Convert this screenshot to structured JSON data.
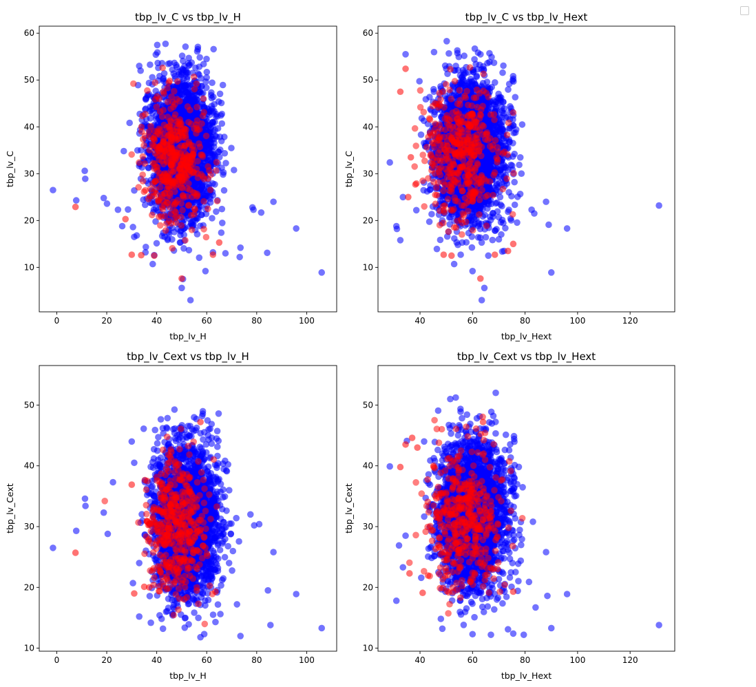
{
  "figure": {
    "legend": {
      "entries": [],
      "placement": "top-right"
    }
  },
  "chart_data": [
    {
      "type": "scatter",
      "title": "tbp_lv_C vs tbp_lv_H",
      "xlabel": "tbp_lv_H",
      "ylabel": "tbp_lv_C",
      "xlim": [
        -7,
        112
      ],
      "ylim": [
        0.5,
        61.5
      ],
      "xticks": [
        0,
        20,
        40,
        60,
        80,
        100
      ],
      "yticks": [
        10,
        20,
        30,
        40,
        50,
        60
      ],
      "grid": false,
      "cluster": {
        "color": "#0000ff",
        "center": [
          50,
          35
        ],
        "spread": [
          11.5,
          13.5
        ],
        "clip_x": [
          25,
          73
        ],
        "clip_y": [
          12,
          58.5
        ]
      },
      "highlight_cluster": {
        "color": "#ff0000",
        "center": [
          47,
          33
        ],
        "spread": [
          6,
          6.5
        ]
      },
      "series": [
        {
          "color": "#0000ff",
          "x": [
            -1.5,
            7.8,
            11.2,
            11.4,
            18.8,
            20.1,
            24.5,
            26.2,
            30.5,
            31,
            32,
            33,
            35.5,
            38.4,
            39,
            50,
            50.5,
            53.5,
            59.5,
            62.5,
            67.5,
            73.2,
            73.5,
            78.3,
            78.7,
            81.8,
            84.2,
            86.7,
            95.8,
            106
          ],
          "y": [
            26.5,
            24.3,
            30.6,
            28.9,
            24.8,
            23.6,
            22.3,
            18.8,
            18.6,
            16.5,
            16.8,
            53,
            13.2,
            10.7,
            12.6,
            5.6,
            7.5,
            3,
            9.2,
            13.2,
            13,
            12.2,
            14.2,
            22.8,
            22.3,
            21.7,
            13.1,
            24,
            18.3,
            8.9
          ]
        },
        {
          "color": "#ff0000",
          "x": [
            7.5,
            27.5,
            30,
            33.8,
            50,
            65,
            62.5,
            39
          ],
          "y": [
            22.9,
            20.3,
            12.7,
            12.6,
            7.6,
            15.3,
            12.7,
            12.5
          ]
        }
      ]
    },
    {
      "type": "scatter",
      "title": "tbp_lv_C vs tbp_lv_Hext",
      "xlabel": "tbp_lv_Hext",
      "ylabel": "tbp_lv_C",
      "xlim": [
        24,
        137
      ],
      "ylim": [
        0.5,
        61.5
      ],
      "xticks": [
        40,
        60,
        80,
        100,
        120
      ],
      "yticks": [
        10,
        20,
        30,
        40,
        50,
        60
      ],
      "grid": false,
      "cluster": {
        "color": "#0000ff",
        "center": [
          59,
          35
        ],
        "spread": [
          12,
          13.5
        ],
        "clip_x": [
          34,
          82
        ],
        "clip_y": [
          12,
          58.5
        ]
      },
      "highlight_cluster": {
        "color": "#ff0000",
        "center": [
          56,
          34
        ],
        "spread": [
          7,
          7
        ]
      },
      "series": [
        {
          "color": "#0000ff",
          "x": [
            28.5,
            31,
            31.2,
            32.5,
            33.5,
            34.5,
            53,
            64.5,
            63.5,
            66,
            60,
            72,
            82.5,
            83.5,
            88,
            89,
            90,
            96,
            131
          ],
          "y": [
            32.4,
            18.8,
            18.2,
            15.8,
            25,
            55.5,
            10.7,
            5.6,
            3,
            12.5,
            9.2,
            13.5,
            22.3,
            21.5,
            24,
            19.1,
            8.9,
            18.3,
            23.2
          ]
        },
        {
          "color": "#ff0000",
          "x": [
            32.5,
            34.5,
            35.5,
            36.5,
            49,
            52,
            63,
            68.5,
            73.5,
            75.5
          ],
          "y": [
            47.5,
            52.4,
            25,
            33.5,
            12.7,
            12.5,
            7.6,
            12.7,
            13.5,
            15
          ]
        }
      ]
    },
    {
      "type": "scatter",
      "title": "tbp_lv_Cext vs tbp_lv_H",
      "xlabel": "tbp_lv_H",
      "ylabel": "tbp_lv_Cext",
      "xlim": [
        -7,
        112
      ],
      "ylim": [
        9.5,
        56.5
      ],
      "xticks": [
        0,
        20,
        40,
        60,
        80,
        100
      ],
      "yticks": [
        10,
        20,
        30,
        40,
        50
      ],
      "grid": false,
      "cluster": {
        "color": "#0000ff",
        "center": [
          52,
          31
        ],
        "spread": [
          11.5,
          11
        ],
        "clip_x": [
          26,
          74
        ],
        "clip_y": [
          12,
          54
        ]
      },
      "highlight_cluster": {
        "color": "#ff0000",
        "center": [
          48,
          30
        ],
        "spread": [
          6,
          5.5
        ]
      },
      "series": [
        {
          "color": "#0000ff",
          "x": [
            -1.5,
            7.8,
            11.3,
            11.5,
            18.8,
            20.4,
            22.5,
            30,
            31,
            33,
            42.5,
            57.5,
            63.5,
            73.5,
            77.5,
            79,
            81,
            84.5,
            85.5,
            86.7,
            95.8,
            106
          ],
          "y": [
            26.5,
            29.3,
            34.6,
            33.4,
            32.3,
            28.8,
            37.3,
            44,
            40.5,
            15.2,
            13.2,
            11.8,
            14.3,
            12,
            32,
            30.2,
            30.4,
            19.5,
            13.8,
            25.8,
            18.9,
            13.3
          ]
        },
        {
          "color": "#ff0000",
          "x": [
            7.5,
            30,
            31,
            35,
            37,
            57.5,
            63.5
          ],
          "y": [
            25.7,
            36.9,
            19,
            20.1,
            20,
            47.2,
            19.3
          ]
        }
      ]
    },
    {
      "type": "scatter",
      "title": "tbp_lv_Cext vs tbp_lv_Hext",
      "xlabel": "tbp_lv_Hext",
      "ylabel": "tbp_lv_Cext",
      "xlim": [
        24,
        137
      ],
      "ylim": [
        9.5,
        56.5
      ],
      "xticks": [
        40,
        60,
        80,
        100,
        120
      ],
      "yticks": [
        10,
        20,
        30,
        40,
        50
      ],
      "grid": false,
      "cluster": {
        "color": "#0000ff",
        "center": [
          60,
          32
        ],
        "spread": [
          11.5,
          11
        ],
        "clip_x": [
          34,
          82
        ],
        "clip_y": [
          12,
          54
        ]
      },
      "highlight_cluster": {
        "color": "#ff0000",
        "center": [
          57,
          31
        ],
        "spread": [
          7,
          6
        ]
      },
      "series": [
        {
          "color": "#0000ff",
          "x": [
            28.5,
            31,
            32,
            33.5,
            34.5,
            35,
            48.5,
            60,
            67,
            73.5,
            75.5,
            79.5,
            81.5,
            83,
            84,
            88,
            88.5,
            90,
            96,
            131
          ],
          "y": [
            39.9,
            17.8,
            26.9,
            23.3,
            28.5,
            44.1,
            13.2,
            12.3,
            12.2,
            13.1,
            12.4,
            12.2,
            20.9,
            30.8,
            16.7,
            25.8,
            18.6,
            13.3,
            18.9,
            13.8
          ]
        },
        {
          "color": "#ff0000",
          "x": [
            32.5,
            34.5,
            36,
            37,
            39,
            41,
            64,
            75.5
          ],
          "y": [
            39.8,
            43.5,
            22.3,
            44.6,
            43,
            19.1,
            47.2,
            19.3
          ]
        }
      ]
    }
  ]
}
